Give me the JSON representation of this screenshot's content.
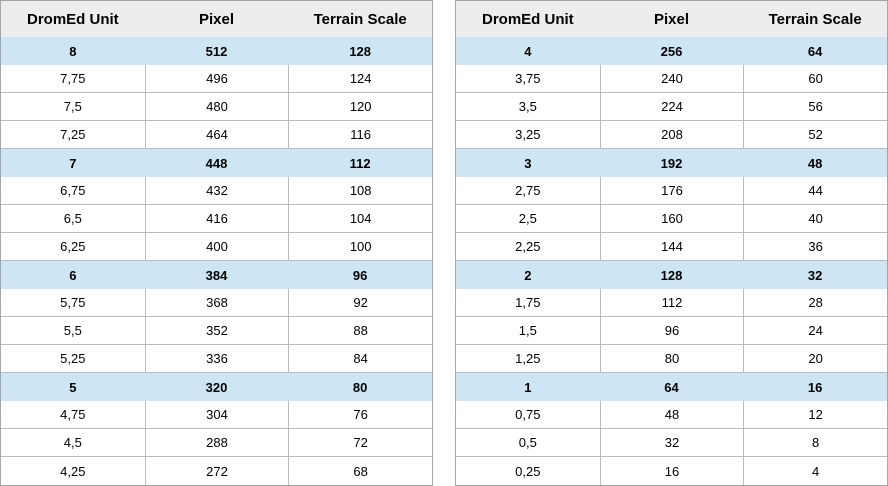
{
  "chart_data": [
    {
      "type": "table",
      "name": "dromed-unit-conversion-left",
      "columns": [
        "DromEd Unit",
        "Pixel",
        "Terrain Scale"
      ],
      "rows": [
        [
          "8",
          "512",
          "128"
        ],
        [
          "7,75",
          "496",
          "124"
        ],
        [
          "7,5",
          "480",
          "120"
        ],
        [
          "7,25",
          "464",
          "116"
        ],
        [
          "7",
          "448",
          "112"
        ],
        [
          "6,75",
          "432",
          "108"
        ],
        [
          "6,5",
          "416",
          "104"
        ],
        [
          "6,25",
          "400",
          "100"
        ],
        [
          "6",
          "384",
          "96"
        ],
        [
          "5,75",
          "368",
          "92"
        ],
        [
          "5,5",
          "352",
          "88"
        ],
        [
          "5,25",
          "336",
          "84"
        ],
        [
          "5",
          "320",
          "80"
        ],
        [
          "4,75",
          "304",
          "76"
        ],
        [
          "4,5",
          "288",
          "72"
        ],
        [
          "4,25",
          "272",
          "68"
        ]
      ],
      "highlighted_rows": [
        0,
        4,
        8,
        12
      ]
    },
    {
      "type": "table",
      "name": "dromed-unit-conversion-right",
      "columns": [
        "DromEd Unit",
        "Pixel",
        "Terrain Scale"
      ],
      "rows": [
        [
          "4",
          "256",
          "64"
        ],
        [
          "3,75",
          "240",
          "60"
        ],
        [
          "3,5",
          "224",
          "56"
        ],
        [
          "3,25",
          "208",
          "52"
        ],
        [
          "3",
          "192",
          "48"
        ],
        [
          "2,75",
          "176",
          "44"
        ],
        [
          "2,5",
          "160",
          "40"
        ],
        [
          "2,25",
          "144",
          "36"
        ],
        [
          "2",
          "128",
          "32"
        ],
        [
          "1,75",
          "112",
          "28"
        ],
        [
          "1,5",
          "96",
          "24"
        ],
        [
          "1,25",
          "80",
          "20"
        ],
        [
          "1",
          "64",
          "16"
        ],
        [
          "0,75",
          "48",
          "12"
        ],
        [
          "0,5",
          "32",
          "8"
        ],
        [
          "0,25",
          "16",
          "4"
        ]
      ],
      "highlighted_rows": [
        0,
        4,
        8,
        12
      ]
    }
  ],
  "colors": {
    "header_bg": "#ededed",
    "highlight_bg": "#cee5f3",
    "inner_border": "#bbbbbb",
    "outer_border": "#a6a6a6",
    "text": "#000000",
    "background": "#ffffff"
  }
}
